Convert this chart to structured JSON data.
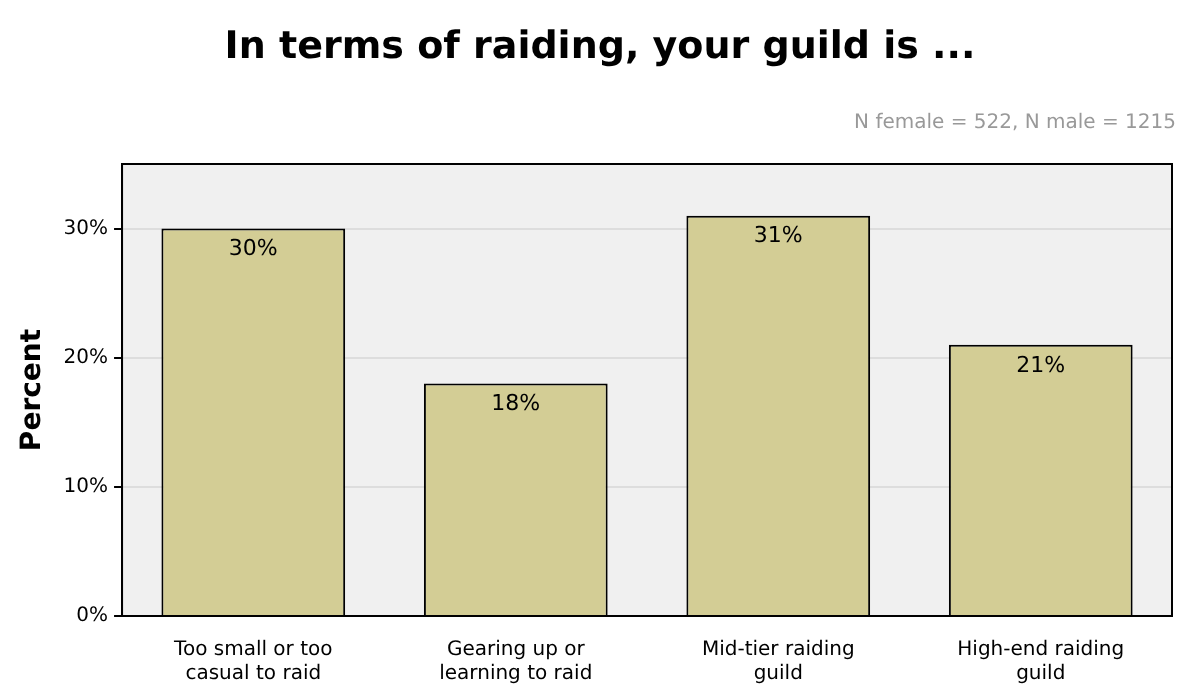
{
  "chart_data": {
    "type": "bar",
    "title": "In terms of raiding, your guild is ...",
    "ylabel": "Percent",
    "annotations": [
      "N female = 522, N male = 1215"
    ],
    "categories": [
      "Too small or too casual to raid",
      "Gearing up or learning to raid",
      "Mid-tier raiding guild",
      "High-end raiding guild"
    ],
    "values": [
      30,
      18,
      31,
      21
    ],
    "value_labels": [
      "30%",
      "18%",
      "31%",
      "21%"
    ],
    "color": "#d3cd95",
    "ylim": [
      0,
      35
    ],
    "yticks": [
      {
        "value": 0,
        "label": "0%"
      },
      {
        "value": 10,
        "label": "10%"
      },
      {
        "value": 20,
        "label": "20%"
      },
      {
        "value": 30,
        "label": "30%"
      }
    ],
    "grid": "y"
  }
}
